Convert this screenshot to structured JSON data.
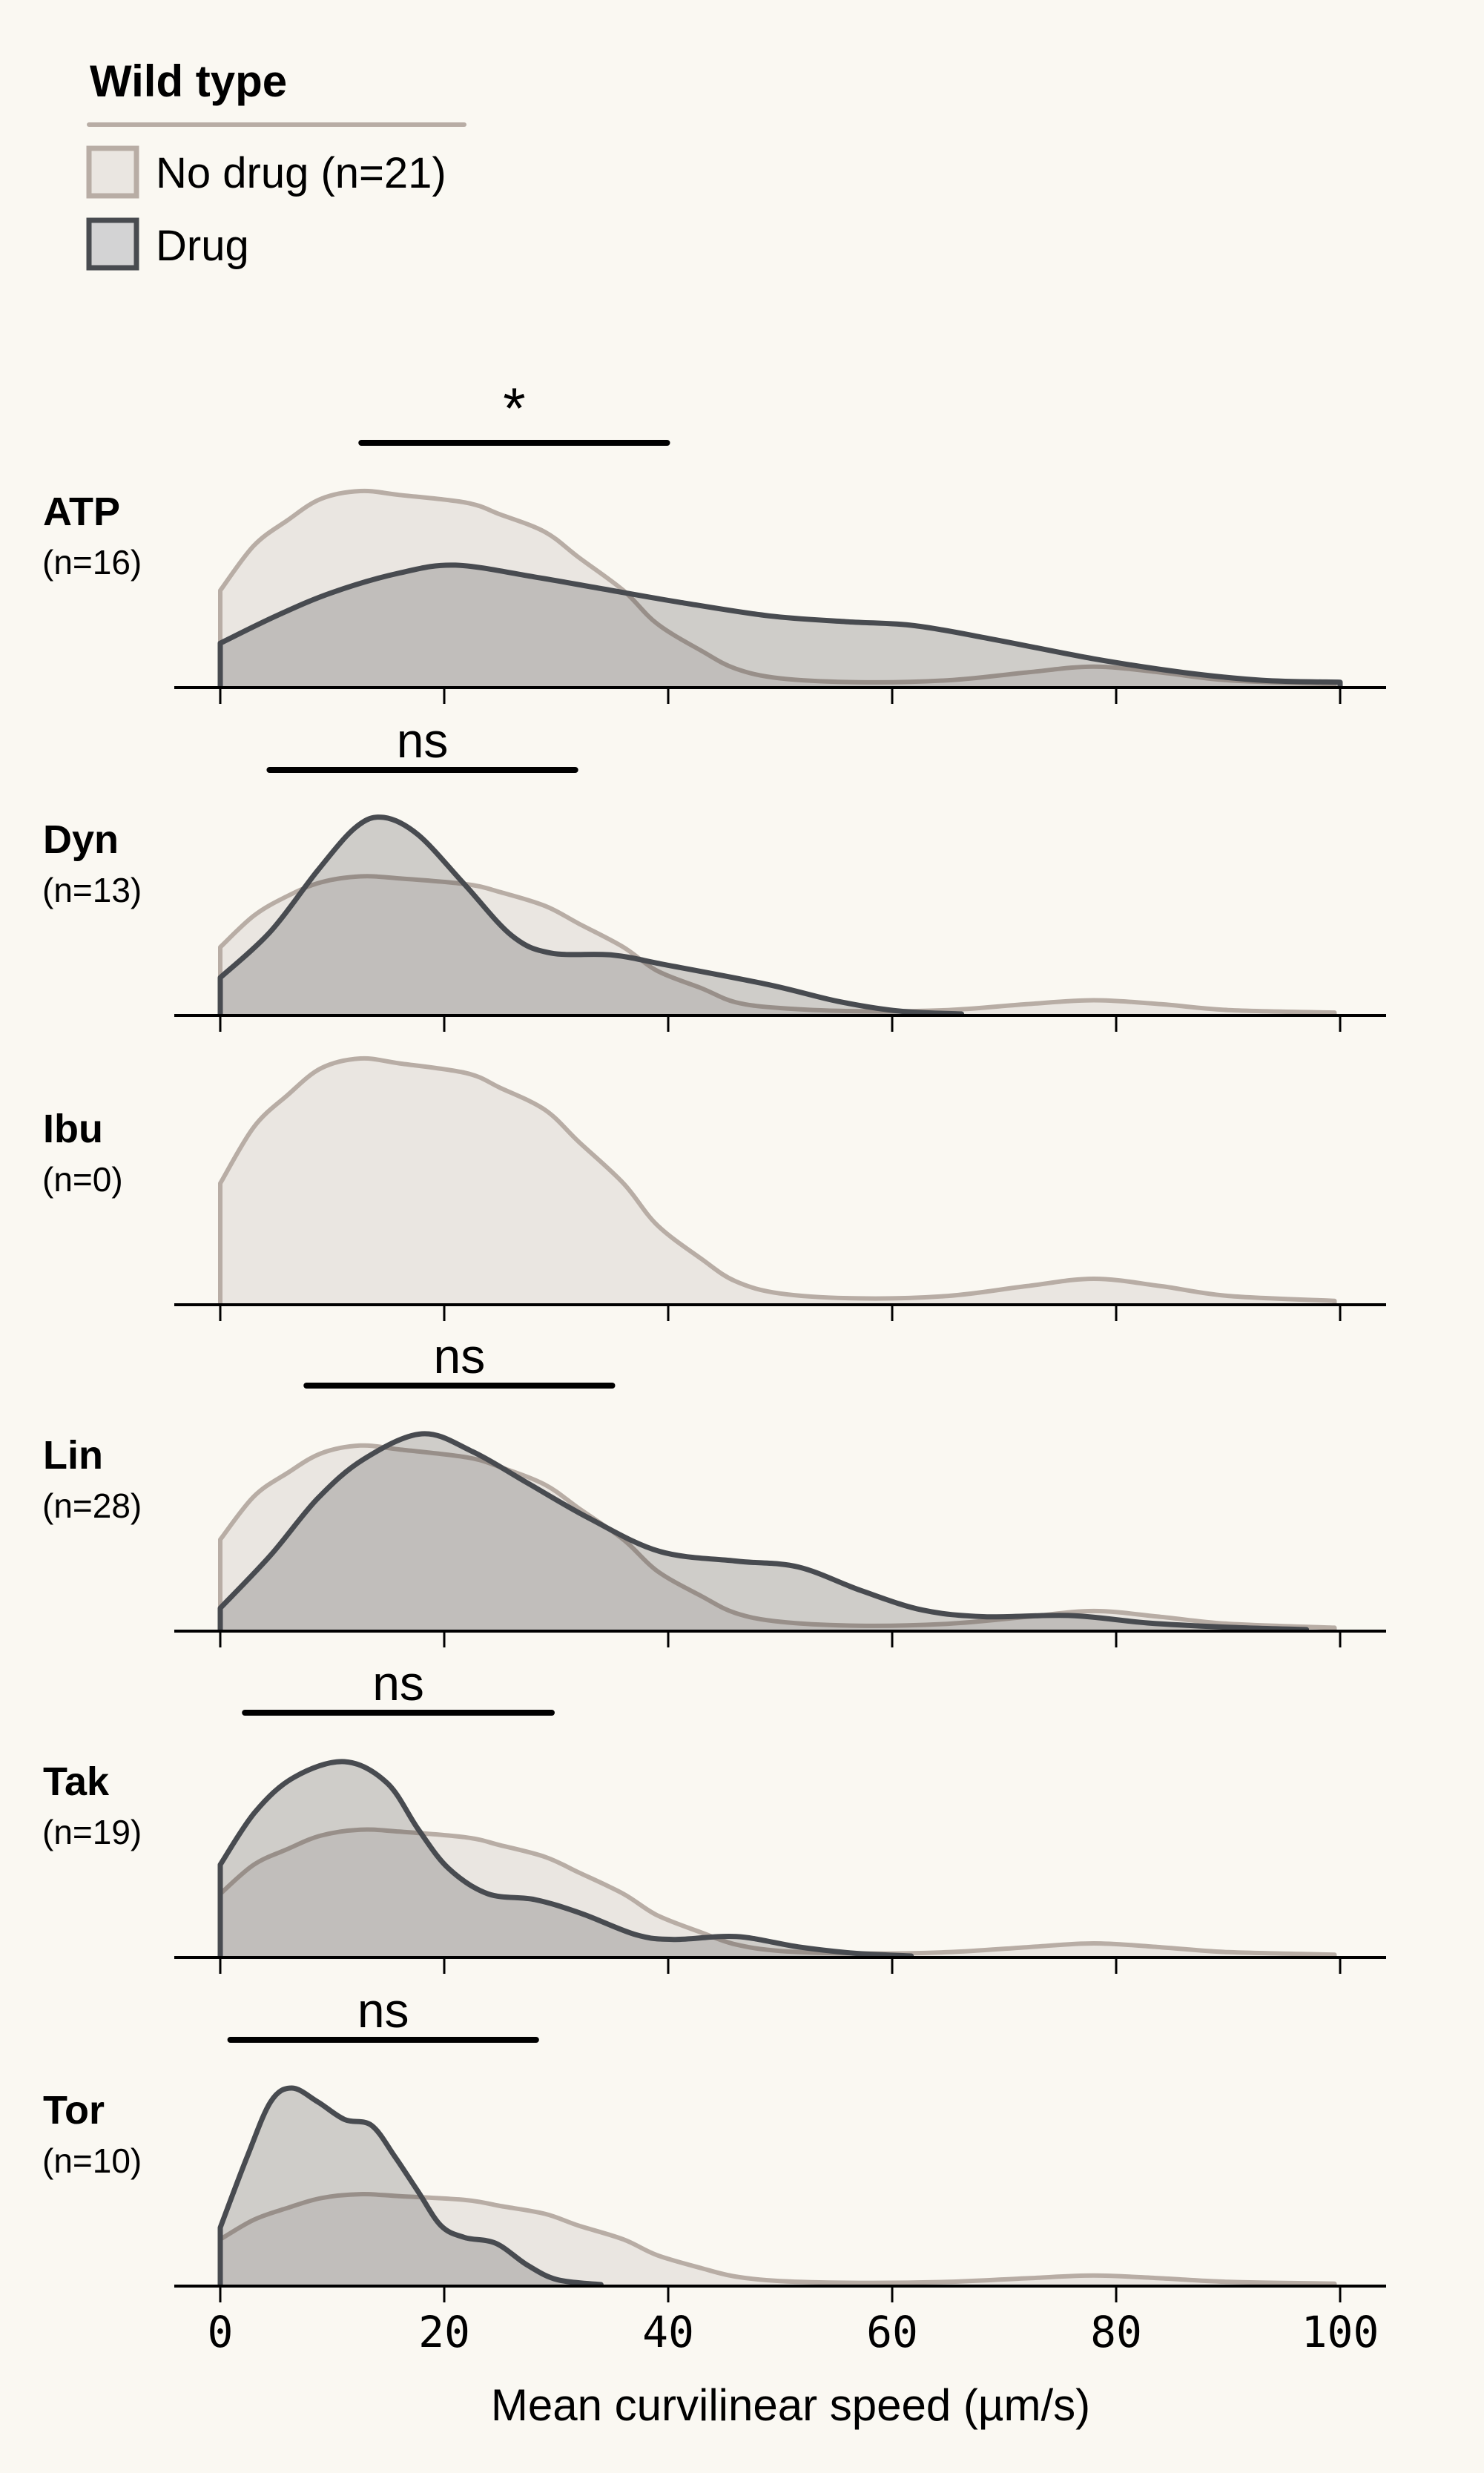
{
  "legend": {
    "title": "Wild type",
    "items": [
      {
        "label": "No drug (n=21)",
        "series": "no_drug"
      },
      {
        "label": "Drug",
        "series": "drug"
      }
    ]
  },
  "colors": {
    "background": "#faf8f2",
    "no_drug_fill": "#eae6e1",
    "no_drug_stroke": "#b8ada5",
    "drug_fill": "#d3d3d4",
    "drug_stroke": "#484b50",
    "axis": "#000000",
    "sig_bar": "#000000"
  },
  "chart_data": {
    "type": "area",
    "subtype": "ridgeline density (KDE) plot",
    "title": "Wild type",
    "xlabel": "Mean curvilinear speed (µm/s)",
    "ylabel": "",
    "xlim": [
      0,
      100
    ],
    "x_ticks": [
      0,
      20,
      40,
      60,
      80,
      100
    ],
    "x_tick_labels": [
      "0",
      "20",
      "40",
      "60",
      "80",
      "100"
    ],
    "legend_position": "top-left",
    "grid": false,
    "density_units": "relative density, tallest curve in each panel = 1.0",
    "series_names": {
      "no_drug": "No drug (n=21)",
      "drug": "Drug"
    },
    "panels": [
      {
        "name": "ATP",
        "n_label": "(n=16)",
        "significance": {
          "label": "*",
          "x_range": [
            12.6,
            39.9
          ]
        },
        "no_drug": {
          "x": [
            0,
            3,
            6,
            9,
            12.5,
            16,
            22,
            25,
            29,
            32,
            36,
            39,
            43,
            46,
            50,
            57,
            65,
            72,
            78,
            84,
            90,
            99.5
          ],
          "density": [
            0.49,
            0.72,
            0.85,
            0.96,
            1.0,
            0.98,
            0.94,
            0.88,
            0.79,
            0.66,
            0.49,
            0.32,
            0.18,
            0.09,
            0.04,
            0.02,
            0.03,
            0.07,
            0.1,
            0.07,
            0.03,
            0.01
          ]
        },
        "drug": {
          "x": [
            0,
            5,
            10,
            16,
            21,
            28,
            34,
            41,
            49,
            56,
            62,
            69,
            78,
            86,
            93,
            100
          ],
          "density": [
            0.22,
            0.36,
            0.48,
            0.58,
            0.62,
            0.56,
            0.5,
            0.43,
            0.36,
            0.33,
            0.31,
            0.24,
            0.14,
            0.07,
            0.03,
            0.02
          ]
        }
      },
      {
        "name": "Dyn",
        "n_label": "(n=13)",
        "significance": {
          "label": "ns",
          "x_range": [
            4.4,
            31.7
          ]
        },
        "no_drug": {
          "x": [
            0,
            3,
            6,
            9,
            12.5,
            16,
            22,
            25,
            29,
            32,
            36,
            39,
            43,
            46,
            50,
            57,
            65,
            72,
            78,
            84,
            90,
            99.5
          ],
          "density": [
            0.34,
            0.5,
            0.6,
            0.67,
            0.7,
            0.69,
            0.66,
            0.62,
            0.55,
            0.46,
            0.34,
            0.22,
            0.13,
            0.06,
            0.03,
            0.014,
            0.02,
            0.05,
            0.07,
            0.05,
            0.02,
            0.007
          ]
        },
        "drug": {
          "x": [
            0,
            4.5,
            8.7,
            12.1,
            14.6,
            17.7,
            21.8,
            26,
            29.5,
            35,
            39.8,
            48.9,
            55.1,
            60.6,
            66.2
          ],
          "density": [
            0.185,
            0.42,
            0.73,
            0.95,
            1.0,
            0.91,
            0.66,
            0.4,
            0.31,
            0.3,
            0.25,
            0.15,
            0.065,
            0.015,
            0.0
          ]
        }
      },
      {
        "name": "Ibu",
        "n_label": "(n=0)",
        "significance": null,
        "no_drug": {
          "x": [
            0,
            3,
            6,
            9,
            12.5,
            16,
            22,
            25,
            29,
            32,
            36,
            39,
            43,
            46,
            50,
            57,
            65,
            72,
            78,
            84,
            90,
            99.5
          ],
          "density": [
            0.49,
            0.72,
            0.85,
            0.96,
            1.0,
            0.98,
            0.94,
            0.88,
            0.79,
            0.66,
            0.49,
            0.32,
            0.18,
            0.09,
            0.04,
            0.02,
            0.03,
            0.07,
            0.1,
            0.07,
            0.03,
            0.01
          ]
        },
        "drug": null
      },
      {
        "name": "Lin",
        "n_label": "(n=28)",
        "significance": {
          "label": "ns",
          "x_range": [
            7.7,
            35.0
          ]
        },
        "no_drug": {
          "x": [
            0,
            3,
            6,
            9,
            12.5,
            16,
            22,
            25,
            29,
            32,
            36,
            39,
            43,
            46,
            50,
            57,
            65,
            72,
            78,
            84,
            90,
            99.5
          ],
          "density": [
            0.46,
            0.68,
            0.8,
            0.9,
            0.94,
            0.92,
            0.88,
            0.83,
            0.74,
            0.62,
            0.46,
            0.3,
            0.17,
            0.085,
            0.04,
            0.02,
            0.03,
            0.065,
            0.095,
            0.065,
            0.03,
            0.01
          ]
        },
        "drug": {
          "x": [
            0,
            4.5,
            8.7,
            12.8,
            18,
            22.5,
            27.4,
            32.9,
            39.2,
            46.1,
            51.6,
            57.2,
            62.7,
            68.3,
            75.9,
            82.8,
            89.7,
            97
          ],
          "density": [
            0.11,
            0.38,
            0.67,
            0.87,
            1.0,
            0.91,
            0.75,
            0.57,
            0.4,
            0.35,
            0.32,
            0.2,
            0.1,
            0.066,
            0.072,
            0.034,
            0.013,
            0.0
          ]
        }
      },
      {
        "name": "Tak",
        "n_label": "(n=19)",
        "significance": {
          "label": "ns",
          "x_range": [
            2.2,
            29.6
          ]
        },
        "no_drug": {
          "x": [
            0,
            3,
            6,
            9,
            12.5,
            16,
            22,
            25,
            29,
            32,
            36,
            39,
            43,
            46,
            50,
            57,
            65,
            72,
            78,
            84,
            90,
            99.5
          ],
          "density": [
            0.32,
            0.47,
            0.55,
            0.62,
            0.65,
            0.64,
            0.61,
            0.57,
            0.51,
            0.43,
            0.32,
            0.21,
            0.12,
            0.06,
            0.026,
            0.013,
            0.02,
            0.045,
            0.065,
            0.045,
            0.02,
            0.007
          ]
        },
        "drug": {
          "x": [
            0,
            3.1,
            6.6,
            11.1,
            14.9,
            17.7,
            20.4,
            23.9,
            28.1,
            32.2,
            37.1,
            40.5,
            46.1,
            51.6,
            56.5,
            61.7
          ],
          "density": [
            0.47,
            0.74,
            0.92,
            1.0,
            0.89,
            0.65,
            0.45,
            0.32,
            0.29,
            0.22,
            0.11,
            0.085,
            0.1,
            0.047,
            0.015,
            0.0
          ]
        }
      },
      {
        "name": "Tor",
        "n_label": "(n=10)",
        "significance": {
          "label": "ns",
          "x_range": [
            0.9,
            28.2
          ]
        },
        "no_drug": {
          "x": [
            0,
            3,
            6,
            9,
            12.5,
            16,
            22,
            25,
            29,
            32,
            36,
            39,
            43,
            46,
            50,
            57,
            65,
            72,
            78,
            84,
            90,
            99.5
          ],
          "density": [
            0.23,
            0.33,
            0.39,
            0.44,
            0.46,
            0.45,
            0.43,
            0.4,
            0.36,
            0.3,
            0.23,
            0.15,
            0.083,
            0.041,
            0.018,
            0.009,
            0.014,
            0.032,
            0.046,
            0.032,
            0.014,
            0.005
          ]
        },
        "drug": {
          "x": [
            0,
            2.4,
            4.5,
            6.4,
            8.7,
            11.1,
            13.5,
            15.6,
            17.7,
            19.7,
            21.8,
            24.6,
            27.4,
            30.1,
            34
          ],
          "density": [
            0.29,
            0.65,
            0.93,
            1.0,
            0.93,
            0.84,
            0.81,
            0.65,
            0.47,
            0.3,
            0.24,
            0.21,
            0.1,
            0.025,
            0.0
          ]
        }
      }
    ]
  }
}
